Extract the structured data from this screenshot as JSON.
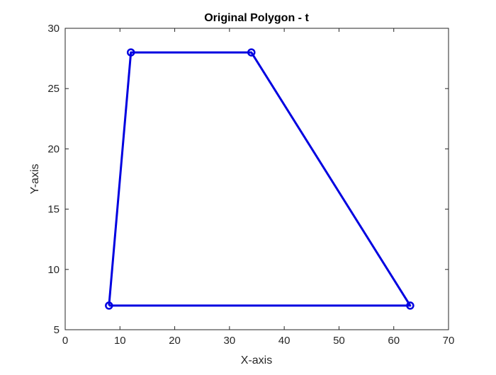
{
  "chart_data": {
    "type": "line",
    "title": "Original Polygon - t",
    "xlabel": "X-axis",
    "ylabel": "Y-axis",
    "xlim": [
      0,
      70
    ],
    "ylim": [
      5,
      30
    ],
    "xticks": [
      0,
      10,
      20,
      30,
      40,
      50,
      60,
      70
    ],
    "yticks": [
      5,
      10,
      15,
      20,
      25,
      30
    ],
    "grid": false,
    "closed": true,
    "marker": "circle",
    "color": "#0000e0",
    "series": [
      {
        "x": [
          8,
          12,
          34,
          63,
          8
        ],
        "y": [
          7,
          28,
          28,
          7,
          7
        ]
      }
    ]
  }
}
